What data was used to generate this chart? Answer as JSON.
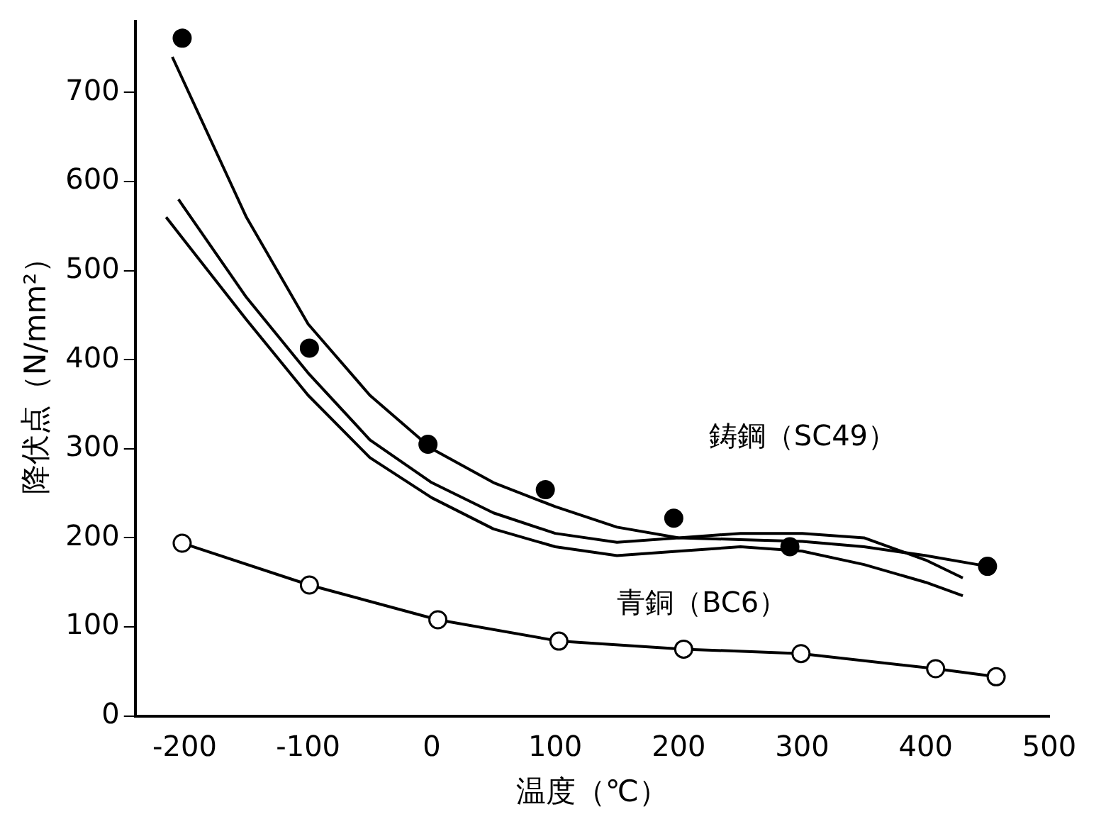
{
  "chart_data": {
    "type": "line",
    "xlabel": "温度（℃）",
    "ylabel": "降伏点（N/mm²）",
    "xlim": [
      -240,
      500
    ],
    "xticks": [
      -200,
      -100,
      0,
      100,
      200,
      300,
      400,
      500
    ],
    "ylim": [
      0,
      780
    ],
    "yticks": [
      0,
      100,
      200,
      300,
      400,
      500,
      600,
      700
    ],
    "grid": false,
    "legend": false,
    "series": [
      {
        "color": "#000000",
        "marker": "none",
        "x": [
          -210,
          -150,
          -100,
          -50,
          0,
          50,
          100,
          150,
          200,
          250,
          300,
          350,
          400,
          450
        ],
        "values": [
          740,
          560,
          440,
          360,
          300,
          262,
          235,
          212,
          200,
          198,
          196,
          190,
          180,
          168
        ]
      },
      {
        "type": "scatter",
        "color": "#000000",
        "marker": "circle",
        "x": [
          -202,
          -99,
          -3,
          92,
          196,
          290,
          450
        ],
        "values": [
          761,
          413,
          305,
          254,
          222,
          190,
          168
        ]
      },
      {
        "color": "#000000",
        "marker": "none",
        "x": [
          -205,
          -150,
          -100,
          -50,
          0,
          50,
          100,
          150,
          200,
          250,
          300,
          350,
          400,
          430
        ],
        "values": [
          580,
          470,
          385,
          310,
          262,
          228,
          205,
          195,
          200,
          205,
          205,
          200,
          175,
          155
        ]
      },
      {
        "color": "#000000",
        "marker": "none",
        "x": [
          -215,
          -150,
          -100,
          -50,
          0,
          50,
          100,
          150,
          200,
          250,
          300,
          350,
          400,
          430
        ],
        "values": [
          560,
          445,
          360,
          290,
          245,
          210,
          190,
          180,
          185,
          190,
          185,
          170,
          150,
          135
        ]
      },
      {
        "color": "#000000",
        "marker": "circle",
        "x": [
          -202,
          -99,
          5,
          103,
          204,
          299,
          408,
          457
        ],
        "values": [
          194,
          147,
          108,
          84,
          75,
          70,
          53,
          44
        ]
      }
    ],
    "annotations": [
      "鋳鋼（SC49）",
      "青銅（BC6）"
    ]
  }
}
